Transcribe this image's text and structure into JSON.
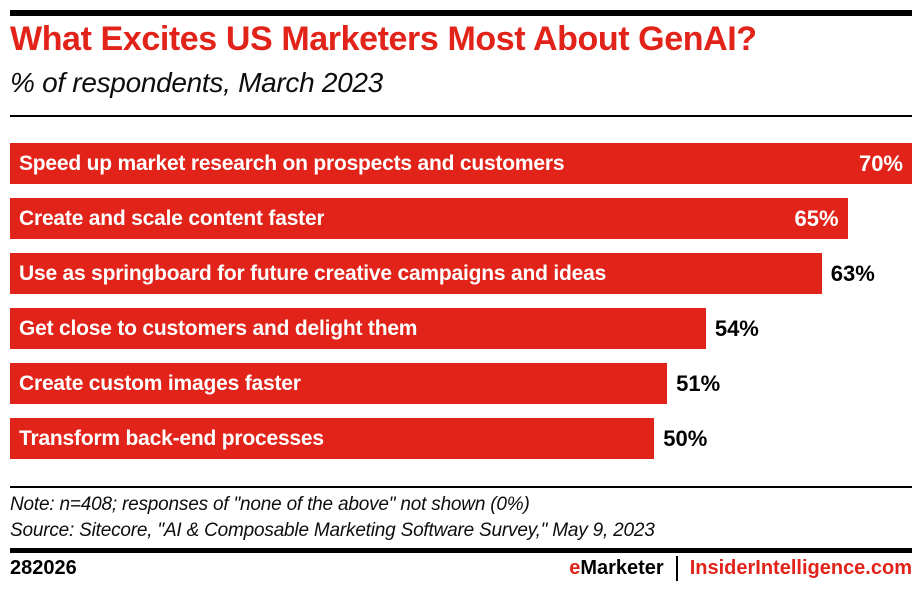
{
  "colors": {
    "accent_red": "#e2231a",
    "bar_red": "#e2231a",
    "text_black": "#000000",
    "bar_text_white": "#ffffff",
    "background": "#ffffff"
  },
  "chart_data": {
    "type": "bar",
    "orientation": "horizontal",
    "title": "What Excites US Marketers Most About GenAI?",
    "subtitle": "% of respondents, March 2023",
    "xlabel": "",
    "ylabel": "",
    "xlim": [
      0,
      70
    ],
    "grid": false,
    "legend": false,
    "bar_color": "#e2231a",
    "categories": [
      "Speed up market research on prospects and customers",
      "Create and scale content faster",
      "Use as springboard for future creative campaigns and ideas",
      "Get close to customers and delight them",
      "Create custom images faster",
      "Transform back-end processes"
    ],
    "values": [
      70,
      65,
      63,
      54,
      51,
      50
    ],
    "value_labels": [
      "70%",
      "65%",
      "63%",
      "54%",
      "51%",
      "50%"
    ],
    "value_label_position": [
      "inside",
      "inside",
      "outside",
      "outside",
      "outside",
      "outside"
    ]
  },
  "notes": {
    "note": "Note: n=408; responses of \"none of the above\" not shown (0%)",
    "source": "Source: Sitecore, \"AI & Composable Marketing Software Survey,\" May 9, 2023"
  },
  "footer": {
    "chart_id": "282026",
    "brand_e": "e",
    "brand_rest": "Marketer",
    "divider": "|",
    "site": "InsiderIntelligence.com"
  }
}
